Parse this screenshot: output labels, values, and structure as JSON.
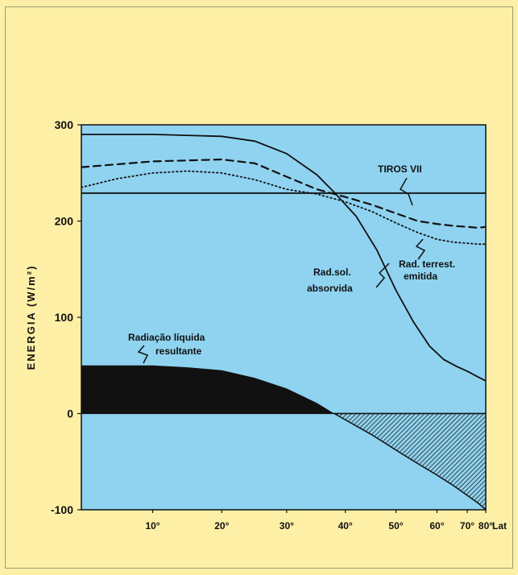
{
  "chart_data": {
    "type": "line",
    "ylabel": "ENERGIA (W/m²)",
    "xlabel": "Lat",
    "ylim": [
      -100,
      300
    ],
    "yticks": [
      "300",
      "200",
      "100",
      "0",
      "-100"
    ],
    "ytick_values": [
      300,
      200,
      100,
      0,
      -100
    ],
    "xtick_values": [
      10,
      20,
      30,
      40,
      50,
      60,
      70,
      80
    ],
    "xticks": [
      "10°",
      "20°",
      "30°",
      "40°",
      "50°",
      "60°",
      "70°",
      "80°"
    ],
    "series": [
      {
        "name": "Rad.sol. absorvida",
        "style": "solid",
        "points": [
          [
            0,
            290
          ],
          [
            5,
            290
          ],
          [
            10,
            290
          ],
          [
            15,
            289
          ],
          [
            20,
            288
          ],
          [
            25,
            283
          ],
          [
            30,
            270
          ],
          [
            35,
            248
          ],
          [
            38,
            230
          ],
          [
            42,
            205
          ],
          [
            46,
            170
          ],
          [
            50,
            128
          ],
          [
            54,
            95
          ],
          [
            58,
            70
          ],
          [
            62,
            56
          ],
          [
            66,
            49
          ],
          [
            70,
            44
          ],
          [
            75,
            38
          ],
          [
            80,
            34
          ]
        ]
      },
      {
        "name": "Rad. terrest. emitida",
        "style": "dashed",
        "points": [
          [
            0,
            256
          ],
          [
            5,
            259
          ],
          [
            10,
            262
          ],
          [
            15,
            263
          ],
          [
            20,
            264
          ],
          [
            25,
            260
          ],
          [
            30,
            246
          ],
          [
            35,
            233
          ],
          [
            40,
            225
          ],
          [
            45,
            217
          ],
          [
            50,
            208
          ],
          [
            55,
            200
          ],
          [
            60,
            197
          ],
          [
            65,
            195
          ],
          [
            70,
            194
          ],
          [
            75,
            193
          ],
          [
            80,
            194
          ]
        ]
      },
      {
        "name": "Rad. terrest. emitida",
        "style": "dotted",
        "points": [
          [
            0,
            235
          ],
          [
            5,
            244
          ],
          [
            10,
            250
          ],
          [
            15,
            252
          ],
          [
            20,
            250
          ],
          [
            25,
            243
          ],
          [
            30,
            233
          ],
          [
            35,
            228
          ],
          [
            40,
            220
          ],
          [
            45,
            210
          ],
          [
            50,
            198
          ],
          [
            55,
            188
          ],
          [
            60,
            181
          ],
          [
            65,
            178
          ],
          [
            70,
            177
          ],
          [
            75,
            176
          ],
          [
            80,
            176
          ]
        ]
      },
      {
        "name": "TIROS VII",
        "style": "solid",
        "points": [
          [
            0,
            229
          ],
          [
            80,
            229
          ]
        ]
      },
      {
        "name": "Radiação líquida resultante",
        "style": "filled",
        "points": [
          [
            0,
            50
          ],
          [
            10,
            50
          ],
          [
            15,
            48
          ],
          [
            20,
            45
          ],
          [
            25,
            37
          ],
          [
            30,
            26
          ],
          [
            35,
            11
          ],
          [
            38,
            0
          ],
          [
            45,
            -22
          ],
          [
            50,
            -38
          ],
          [
            55,
            -52
          ],
          [
            60,
            -64
          ],
          [
            65,
            -75
          ],
          [
            70,
            -85
          ],
          [
            75,
            -93
          ],
          [
            80,
            -100
          ]
        ]
      }
    ],
    "annotations": [
      "TIROS VII",
      "Rad. terrest. emitida",
      "Rad.sol. absorvida",
      "Radiação líquida resultante"
    ]
  },
  "labels": {
    "tiros": "TIROS VII",
    "terrest_1": "Rad. terrest.",
    "terrest_2": "emitida",
    "sol_1": "Rad.sol.",
    "sol_2": "absorvida",
    "liq_1": "Radiação líquida",
    "liq_2": "resultante"
  },
  "colors": {
    "background": "#fdf0a6",
    "plot": "#8fd3f0",
    "ink": "#111111"
  }
}
